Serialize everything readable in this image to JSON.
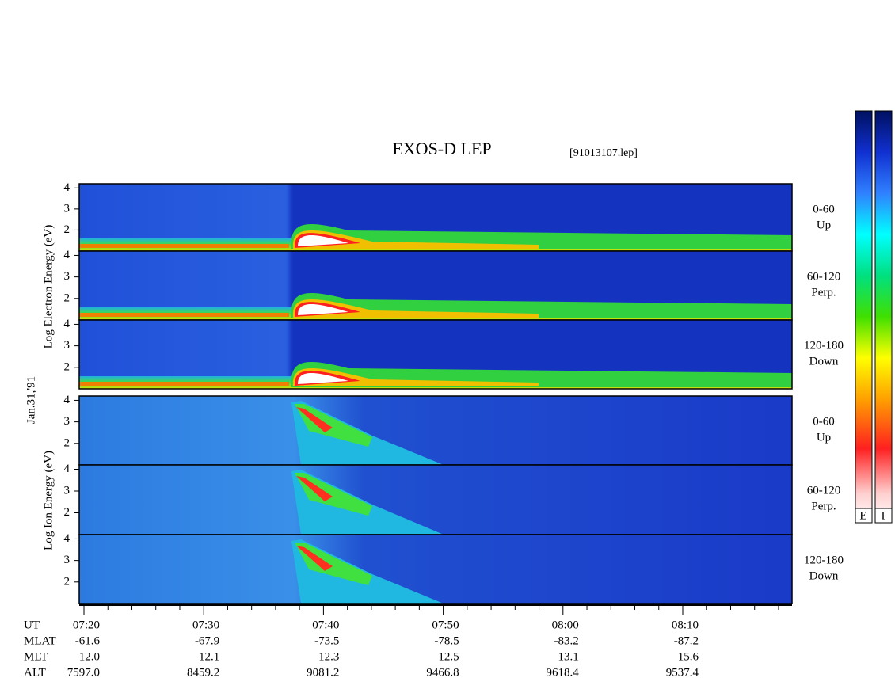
{
  "title": "EXOS-D LEP",
  "file": "[91013107.lep]",
  "date": "Jan.31,'91",
  "electron": {
    "ylabel": "Log Electron Energy (eV)",
    "yticks": [
      4,
      3,
      2
    ],
    "panels": [
      {
        "angle": "0-60",
        "direction": "Up"
      },
      {
        "angle": "60-120",
        "direction": "Perp."
      },
      {
        "angle": "120-180",
        "direction": "Down"
      }
    ]
  },
  "ion": {
    "ylabel": "Log Ion Energy (eV)",
    "yticks": [
      4,
      3,
      2
    ],
    "panels": [
      {
        "angle": "0-60",
        "direction": "Up"
      },
      {
        "angle": "60-120",
        "direction": "Perp."
      },
      {
        "angle": "120-180",
        "direction": "Down"
      }
    ]
  },
  "colorbar_labels": [
    "E",
    "I"
  ],
  "orbit": {
    "row_labels": [
      "UT",
      "MLAT",
      "MLT",
      "ALT"
    ],
    "columns": [
      [
        "07:20",
        "-61.6",
        "12.0",
        "7597.0"
      ],
      [
        "07:30",
        "-67.9",
        "12.1",
        "8459.2"
      ],
      [
        "07:40",
        "-73.5",
        "12.3",
        "9081.2"
      ],
      [
        "07:50",
        "-78.5",
        "12.5",
        "9466.8"
      ],
      [
        "08:00",
        "-83.2",
        "13.1",
        "9618.4"
      ],
      [
        "08:10",
        "-87.2",
        "15.6",
        "9537.4"
      ]
    ]
  }
}
